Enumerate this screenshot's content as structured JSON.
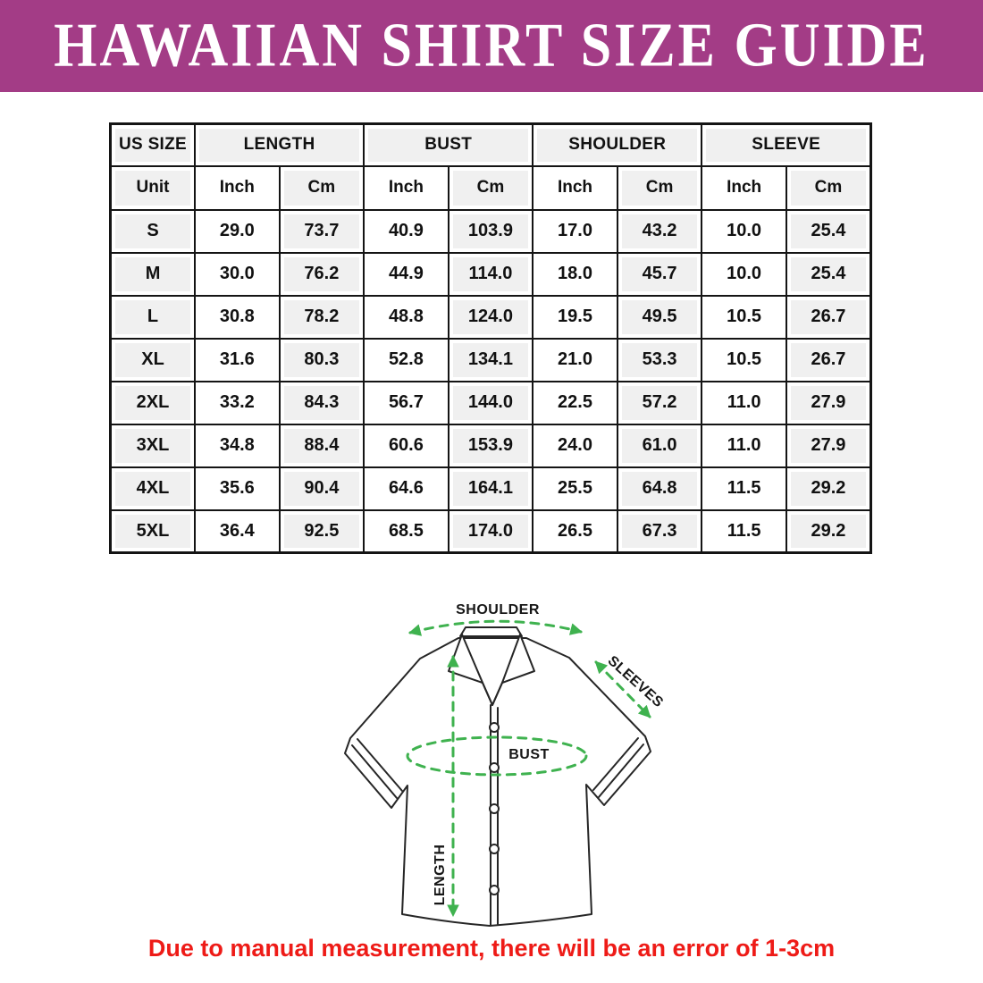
{
  "banner": {
    "title": "HAWAIIAN SHIRT SIZE GUIDE",
    "bg_color": "#a33c86",
    "text_color": "#ffffff"
  },
  "table": {
    "group_headers": [
      {
        "label": "US SIZE",
        "span": 1
      },
      {
        "label": "LENGTH",
        "span": 2
      },
      {
        "label": "BUST",
        "span": 2
      },
      {
        "label": "SHOULDER",
        "span": 2
      },
      {
        "label": "SLEEVE",
        "span": 2
      }
    ],
    "unit_row": [
      "Unit",
      "Inch",
      "Cm",
      "Inch",
      "Cm",
      "Inch",
      "Cm",
      "Inch",
      "Cm"
    ],
    "rows": [
      {
        "size": "S",
        "values": [
          "29.0",
          "73.7",
          "40.9",
          "103.9",
          "17.0",
          "43.2",
          "10.0",
          "25.4"
        ]
      },
      {
        "size": "M",
        "values": [
          "30.0",
          "76.2",
          "44.9",
          "114.0",
          "18.0",
          "45.7",
          "10.0",
          "25.4"
        ]
      },
      {
        "size": "L",
        "values": [
          "30.8",
          "78.2",
          "48.8",
          "124.0",
          "19.5",
          "49.5",
          "10.5",
          "26.7"
        ]
      },
      {
        "size": "XL",
        "values": [
          "31.6",
          "80.3",
          "52.8",
          "134.1",
          "21.0",
          "53.3",
          "10.5",
          "26.7"
        ]
      },
      {
        "size": "2XL",
        "values": [
          "33.2",
          "84.3",
          "56.7",
          "144.0",
          "22.5",
          "57.2",
          "11.0",
          "27.9"
        ]
      },
      {
        "size": "3XL",
        "values": [
          "34.8",
          "88.4",
          "60.6",
          "153.9",
          "24.0",
          "61.0",
          "11.0",
          "27.9"
        ]
      },
      {
        "size": "4XL",
        "values": [
          "35.6",
          "90.4",
          "64.6",
          "164.1",
          "25.5",
          "64.8",
          "11.5",
          "29.2"
        ]
      },
      {
        "size": "5XL",
        "values": [
          "36.4",
          "92.5",
          "68.5",
          "174.0",
          "26.5",
          "67.3",
          "11.5",
          "29.2"
        ]
      }
    ]
  },
  "diagram": {
    "labels": {
      "shoulder": "SHOULDER",
      "sleeves": "SLEEVES",
      "bust": "BUST",
      "length": "LENGTH"
    },
    "arrow_color": "#3fb24f"
  },
  "note": {
    "text": "Due to manual measurement, there will be an error of 1-3cm",
    "color": "#ee1b17"
  }
}
